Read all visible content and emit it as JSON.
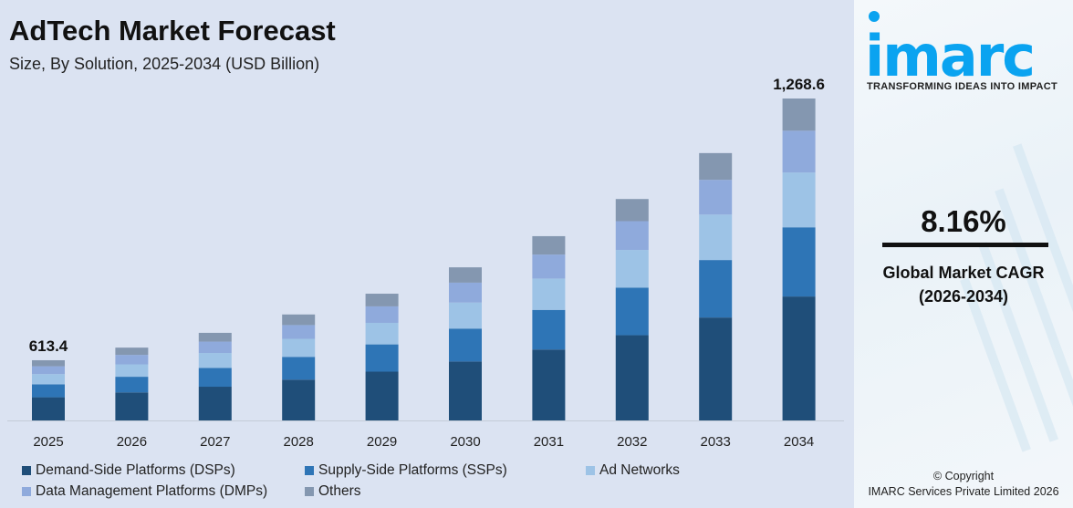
{
  "title": "AdTech Market Forecast",
  "subtitle": "Size, By Solution, 2025-2034 (USD Billion)",
  "side": {
    "logo_text": "imarc",
    "tagline": "TRANSFORMING IDEAS INTO IMPACT",
    "cagr_value": "8.16%",
    "cagr_label": "Global Market CAGR",
    "cagr_period": "(2026-2034)",
    "copyright_line1": "© Copyright",
    "copyright_line2": "IMARC Services Private Limited 2026"
  },
  "chart_data": {
    "type": "bar",
    "stacked": true,
    "title": "AdTech Market Forecast",
    "subtitle": "Size, By Solution, 2025-2034 (USD Billion)",
    "categories": [
      "2025",
      "2026",
      "2027",
      "2028",
      "2029",
      "2030",
      "2031",
      "2032",
      "2033",
      "2034"
    ],
    "totals": [
      613.4,
      645,
      682,
      728,
      780,
      846,
      924,
      1017,
      1132,
      1268.6
    ],
    "total_labels": {
      "2025": "613.4",
      "2034": "1,268.6"
    },
    "series": [
      {
        "name": "Demand-Side Platforms (DSPs)",
        "color": "#1f4e79",
        "values": [
          236.2,
          248.3,
          262.6,
          280.3,
          300.3,
          325.7,
          355.7,
          391.5,
          435.8,
          488.4
        ]
      },
      {
        "name": "Supply-Side Platforms (SSPs)",
        "color": "#2e75b6",
        "values": [
          131.9,
          138.7,
          146.6,
          156.5,
          167.7,
          181.9,
          198.7,
          218.7,
          243.4,
          272.7
        ]
      },
      {
        "name": "Ad Networks",
        "color": "#9dc3e6",
        "values": [
          104.3,
          109.7,
          115.9,
          123.8,
          132.6,
          143.8,
          157.1,
          172.9,
          192.4,
          215.7
        ]
      },
      {
        "name": "Data Management Platforms (DMPs)",
        "color": "#8faadc",
        "values": [
          79.7,
          83.9,
          88.7,
          94.6,
          101.4,
          110.0,
          120.1,
          132.2,
          147.2,
          164.9
        ]
      },
      {
        "name": "Others",
        "color": "#8497b0",
        "values": [
          61.3,
          64.4,
          68.2,
          72.8,
          78.0,
          84.6,
          92.4,
          101.7,
          113.2,
          126.9
        ]
      }
    ],
    "legend_position": "bottom",
    "grid": false
  }
}
